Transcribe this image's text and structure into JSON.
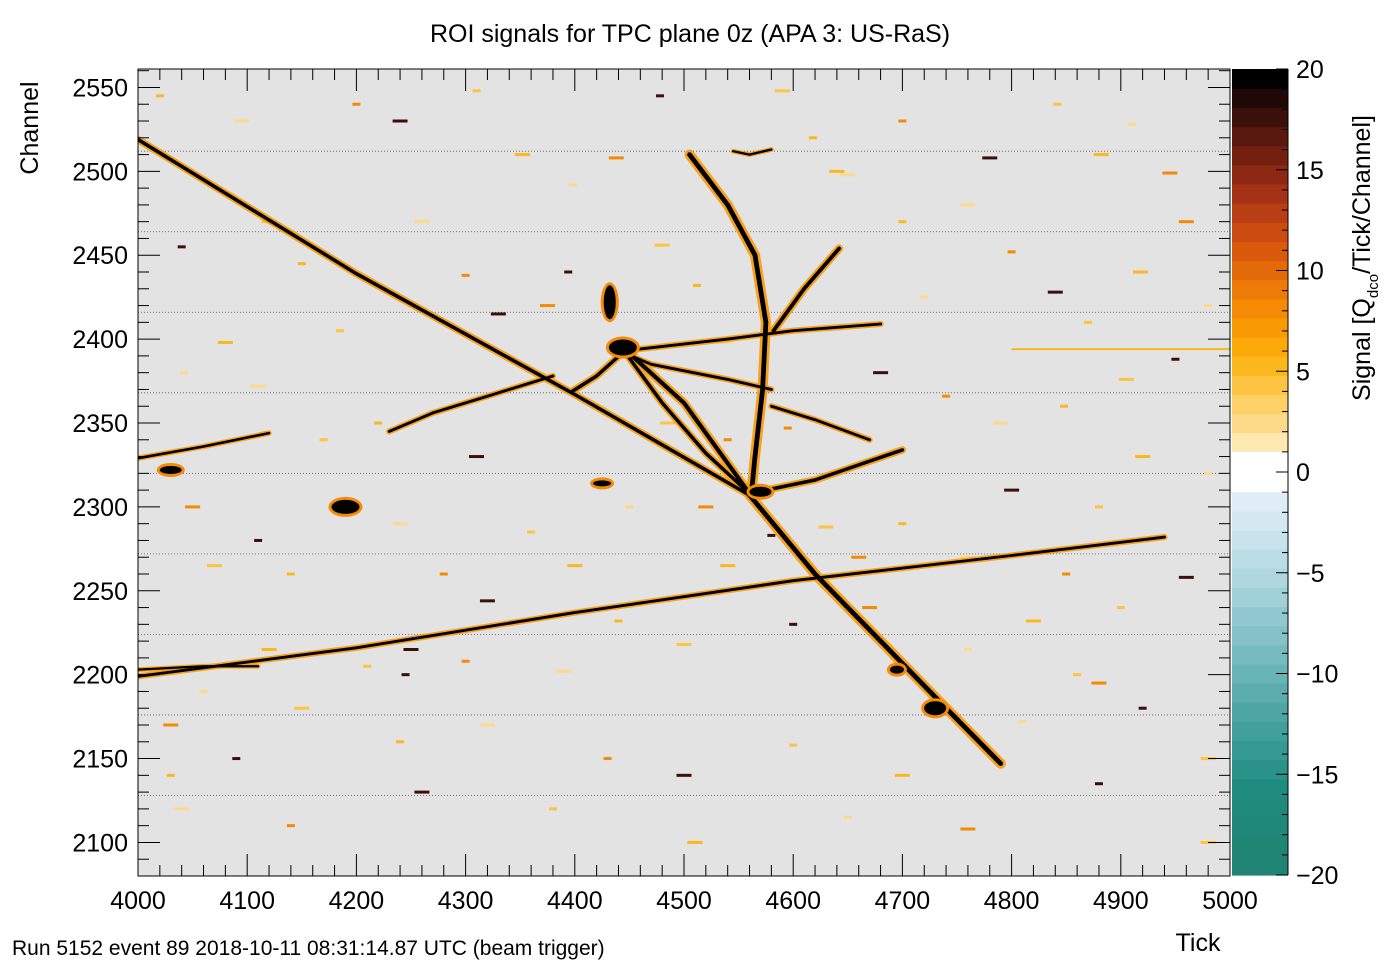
{
  "chart_data": {
    "type": "heatmap",
    "title": "ROI signals for TPC plane 0z (APA 3: US-RaS)",
    "xlabel": "Tick",
    "ylabel": "Channel",
    "zlabel_main": "Signal [Q",
    "zlabel_sub": "dco",
    "zlabel_tail": "/Tick/Channel]",
    "footer": "Run 5152 event 89 2018-10-11 08:31:14.87 UTC (beam trigger)",
    "xlim": [
      4000,
      5000
    ],
    "ylim": [
      2080,
      2561
    ],
    "zlim": [
      -20,
      20
    ],
    "x_ticks": [
      "4000",
      "4100",
      "4200",
      "4300",
      "4400",
      "4500",
      "4600",
      "4700",
      "4800",
      "4900",
      "5000"
    ],
    "y_ticks": [
      "2100",
      "2150",
      "2200",
      "2250",
      "2300",
      "2350",
      "2400",
      "2450",
      "2500",
      "2550"
    ],
    "z_ticks": [
      "−20",
      "−15",
      "−10",
      "−5",
      "0",
      "5",
      "10",
      "15",
      "20"
    ],
    "z_tick_values": [
      -20,
      -15,
      -10,
      -5,
      0,
      5,
      10,
      15,
      20
    ],
    "background_color": "#e3e3e3",
    "positive_colors": [
      "#fde8b0",
      "#fdd98a",
      "#fdd167",
      "#fcc440",
      "#fbb81e",
      "#fbaa0a",
      "#f99a05",
      "#f58a05",
      "#ee7a07",
      "#e46a09",
      "#d95a0c",
      "#cb4b10",
      "#ba3e13",
      "#a53214",
      "#8d2913",
      "#732011",
      "#58180e",
      "#3c100a",
      "#1f0805",
      "#000000"
    ],
    "negative_colors": [
      "#dfeef6",
      "#d4e8f1",
      "#c8e3ec",
      "#bbdde6",
      "#aed7df",
      "#a0d0d8",
      "#92c9d0",
      "#84c2c8",
      "#76bbbf",
      "#68b4b6",
      "#5badad",
      "#4ea6a4",
      "#42a09a",
      "#369991",
      "#2a9288",
      "#1f8c7f",
      "#1f8a7c",
      "#1f8879",
      "#1f8676",
      "#1f8473"
    ],
    "boundary_channels": [
      2128,
      2176,
      2224,
      2272,
      2320,
      2368,
      2416,
      2464,
      2512
    ],
    "tracks": [
      {
        "points": [
          [
            4000,
            2519
          ],
          [
            4200,
            2439
          ],
          [
            4400,
            2367
          ],
          [
            4560,
            2307
          ]
        ],
        "width": 2.2
      },
      {
        "points": [
          [
            4000,
            2199
          ],
          [
            4200,
            2216
          ],
          [
            4400,
            2237
          ],
          [
            4600,
            2256
          ],
          [
            4800,
            2271
          ],
          [
            4940,
            2282
          ]
        ],
        "width": 1.8
      },
      {
        "points": [
          [
            4560,
            2307
          ],
          [
            4620,
            2260
          ],
          [
            4680,
            2220
          ],
          [
            4740,
            2180
          ],
          [
            4790,
            2147
          ]
        ],
        "width": 3.0
      },
      {
        "points": [
          [
            4444,
            2395
          ],
          [
            4500,
            2362
          ],
          [
            4560,
            2308
          ]
        ],
        "width": 2.6
      },
      {
        "points": [
          [
            4444,
            2394
          ],
          [
            4480,
            2362
          ],
          [
            4520,
            2332
          ],
          [
            4560,
            2308
          ]
        ],
        "width": 2.2
      },
      {
        "points": [
          [
            4505,
            2510
          ],
          [
            4540,
            2480
          ],
          [
            4565,
            2450
          ],
          [
            4575,
            2410
          ],
          [
            4572,
            2370
          ],
          [
            4565,
            2330
          ],
          [
            4562,
            2310
          ]
        ],
        "width": 3.0
      },
      {
        "points": [
          [
            4444,
            2393
          ],
          [
            4540,
            2400
          ],
          [
            4600,
            2405
          ],
          [
            4680,
            2409
          ]
        ],
        "width": 1.8
      },
      {
        "points": [
          [
            4582,
            2405
          ],
          [
            4610,
            2430
          ],
          [
            4642,
            2454
          ]
        ],
        "width": 2.4
      },
      {
        "points": [
          [
            4560,
            2308
          ],
          [
            4620,
            2316
          ],
          [
            4700,
            2334
          ]
        ],
        "width": 2.2
      },
      {
        "points": [
          [
            4444,
            2392
          ],
          [
            4420,
            2378
          ],
          [
            4398,
            2369
          ]
        ],
        "width": 2.2
      },
      {
        "points": [
          [
            4380,
            2378
          ],
          [
            4320,
            2366
          ],
          [
            4270,
            2356
          ],
          [
            4230,
            2345
          ]
        ],
        "width": 1.8
      },
      {
        "points": [
          [
            4444,
            2392
          ],
          [
            4470,
            2385
          ],
          [
            4540,
            2376
          ],
          [
            4580,
            2370
          ]
        ],
        "width": 1.8
      },
      {
        "points": [
          [
            4580,
            2360
          ],
          [
            4620,
            2352
          ],
          [
            4670,
            2340
          ]
        ],
        "width": 1.8
      },
      {
        "points": [
          [
            4000,
            2329
          ],
          [
            4060,
            2336
          ],
          [
            4120,
            2344
          ]
        ],
        "width": 1.6
      },
      {
        "points": [
          [
            4000,
            2203
          ],
          [
            4060,
            2205
          ],
          [
            4110,
            2205
          ]
        ],
        "width": 1.4
      },
      {
        "points": [
          [
            4545,
            2512
          ],
          [
            4560,
            2510
          ],
          [
            4580,
            2513
          ]
        ],
        "width": 1.4
      }
    ],
    "blobs": [
      {
        "x": 4444,
        "y": 2395,
        "w": 28,
        "h": 16
      },
      {
        "x": 4432,
        "y": 2422,
        "w": 12,
        "h": 34
      },
      {
        "x": 4570,
        "y": 2309,
        "w": 22,
        "h": 10
      },
      {
        "x": 4730,
        "y": 2180,
        "w": 22,
        "h": 14
      },
      {
        "x": 4190,
        "y": 2300,
        "w": 28,
        "h": 14
      },
      {
        "x": 4030,
        "y": 2322,
        "w": 22,
        "h": 8
      },
      {
        "x": 4425,
        "y": 2314,
        "w": 18,
        "h": 6
      },
      {
        "x": 4695,
        "y": 2203,
        "w": 14,
        "h": 8
      }
    ],
    "hscan": [
      {
        "x1": 4800,
        "x2": 5000,
        "y": 2394
      }
    ],
    "noise": [
      [
        4020,
        2545
      ],
      [
        4095,
        2530
      ],
      [
        4200,
        2540
      ],
      [
        4240,
        2530
      ],
      [
        4310,
        2548
      ],
      [
        4352,
        2510
      ],
      [
        4398,
        2492
      ],
      [
        4438,
        2508
      ],
      [
        4478,
        2545
      ],
      [
        4590,
        2548
      ],
      [
        4618,
        2520
      ],
      [
        4650,
        2498
      ],
      [
        4700,
        2530
      ],
      [
        4780,
        2508
      ],
      [
        4842,
        2540
      ],
      [
        4882,
        2510
      ],
      [
        4910,
        2528
      ],
      [
        4945,
        2499
      ],
      [
        4040,
        2455
      ],
      [
        4120,
        2470
      ],
      [
        4150,
        2445
      ],
      [
        4260,
        2470
      ],
      [
        4300,
        2438
      ],
      [
        4330,
        2415
      ],
      [
        4185,
        2405
      ],
      [
        4080,
        2398
      ],
      [
        4042,
        2380
      ],
      [
        4375,
        2420
      ],
      [
        4394,
        2440
      ],
      [
        4480,
        2456
      ],
      [
        4700,
        2470
      ],
      [
        4760,
        2480
      ],
      [
        4800,
        2452
      ],
      [
        4840,
        2428
      ],
      [
        4870,
        2410
      ],
      [
        4918,
        2440
      ],
      [
        4980,
        2420
      ],
      [
        4960,
        2470
      ],
      [
        4950,
        2388
      ],
      [
        4905,
        2376
      ],
      [
        4848,
        2360
      ],
      [
        4790,
        2350
      ],
      [
        4740,
        2366
      ],
      [
        4800,
        2310
      ],
      [
        4880,
        2300
      ],
      [
        4920,
        2330
      ],
      [
        4980,
        2320
      ],
      [
        4050,
        2300
      ],
      [
        4110,
        2280
      ],
      [
        4070,
        2265
      ],
      [
        4140,
        2260
      ],
      [
        4240,
        2290
      ],
      [
        4280,
        2260
      ],
      [
        4320,
        2244
      ],
      [
        4360,
        2285
      ],
      [
        4400,
        2265
      ],
      [
        4450,
        2300
      ],
      [
        4520,
        2300
      ],
      [
        4580,
        2283
      ],
      [
        4630,
        2288
      ],
      [
        4700,
        2290
      ],
      [
        4760,
        2270
      ],
      [
        4850,
        2260
      ],
      [
        4960,
        2258
      ],
      [
        4900,
        2240
      ],
      [
        4820,
        2232
      ],
      [
        4760,
        2215
      ],
      [
        4670,
        2240
      ],
      [
        4600,
        2230
      ],
      [
        4500,
        2218
      ],
      [
        4440,
        2232
      ],
      [
        4390,
        2202
      ],
      [
        4300,
        2208
      ],
      [
        4250,
        2215
      ],
      [
        4210,
        2205
      ],
      [
        4120,
        2215
      ],
      [
        4060,
        2190
      ],
      [
        4030,
        2170
      ],
      [
        4090,
        2150
      ],
      [
        4150,
        2180
      ],
      [
        4240,
        2160
      ],
      [
        4320,
        2170
      ],
      [
        4430,
        2150
      ],
      [
        4500,
        2140
      ],
      [
        4600,
        2158
      ],
      [
        4700,
        2140
      ],
      [
        4810,
        2172
      ],
      [
        4880,
        2195
      ],
      [
        4920,
        2180
      ],
      [
        4980,
        2150
      ],
      [
        4030,
        2140
      ],
      [
        4040,
        2120
      ],
      [
        4140,
        2110
      ],
      [
        4260,
        2130
      ],
      [
        4380,
        2120
      ],
      [
        4510,
        2100
      ],
      [
        4650,
        2115
      ],
      [
        4760,
        2108
      ],
      [
        4880,
        2135
      ],
      [
        4980,
        2100
      ],
      [
        4220,
        2350
      ],
      [
        4110,
        2372
      ],
      [
        4540,
        2340
      ],
      [
        4310,
        2330
      ],
      [
        4170,
        2340
      ],
      [
        4640,
        2500
      ],
      [
        4720,
        2425
      ],
      [
        4660,
        2270
      ],
      [
        4245,
        2200
      ],
      [
        4485,
        2350
      ],
      [
        4512,
        2432
      ],
      [
        4537,
        2398
      ],
      [
        4595,
        2347
      ],
      [
        4680,
        2380
      ],
      [
        4860,
        2200
      ],
      [
        4540,
        2265
      ]
    ]
  }
}
